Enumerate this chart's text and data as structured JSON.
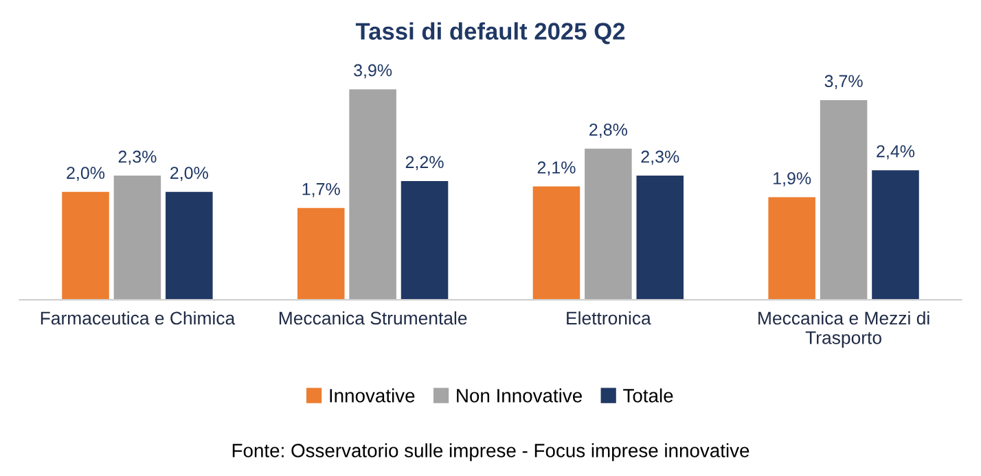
{
  "chart_data": {
    "type": "bar",
    "title": "Tassi di default 2025 Q2",
    "categories": [
      "Farmaceutica e Chimica",
      "Meccanica Strumentale",
      "Elettronica",
      "Meccanica e Mezzi di Trasporto"
    ],
    "series": [
      {
        "name": "Innovative",
        "color": "#ed7d31",
        "values": [
          2.0,
          1.7,
          2.1,
          1.9
        ],
        "value_labels": [
          "2,0%",
          "1,7%",
          "2,1%",
          "1,9%"
        ]
      },
      {
        "name": "Non Innovative",
        "color": "#a5a5a5",
        "values": [
          2.3,
          3.9,
          2.8,
          3.7
        ],
        "value_labels": [
          "2,3%",
          "3,9%",
          "2,8%",
          "3,7%"
        ]
      },
      {
        "name": "Totale",
        "color": "#203864",
        "values": [
          2.0,
          2.2,
          2.3,
          2.4
        ],
        "value_labels": [
          "2,0%",
          "2,2%",
          "2,3%",
          "2,4%"
        ]
      }
    ],
    "legend": "bottom",
    "annotations": [
      "Fonte: Osservatorio sulle imprese - Focus imprese innovative"
    ]
  }
}
